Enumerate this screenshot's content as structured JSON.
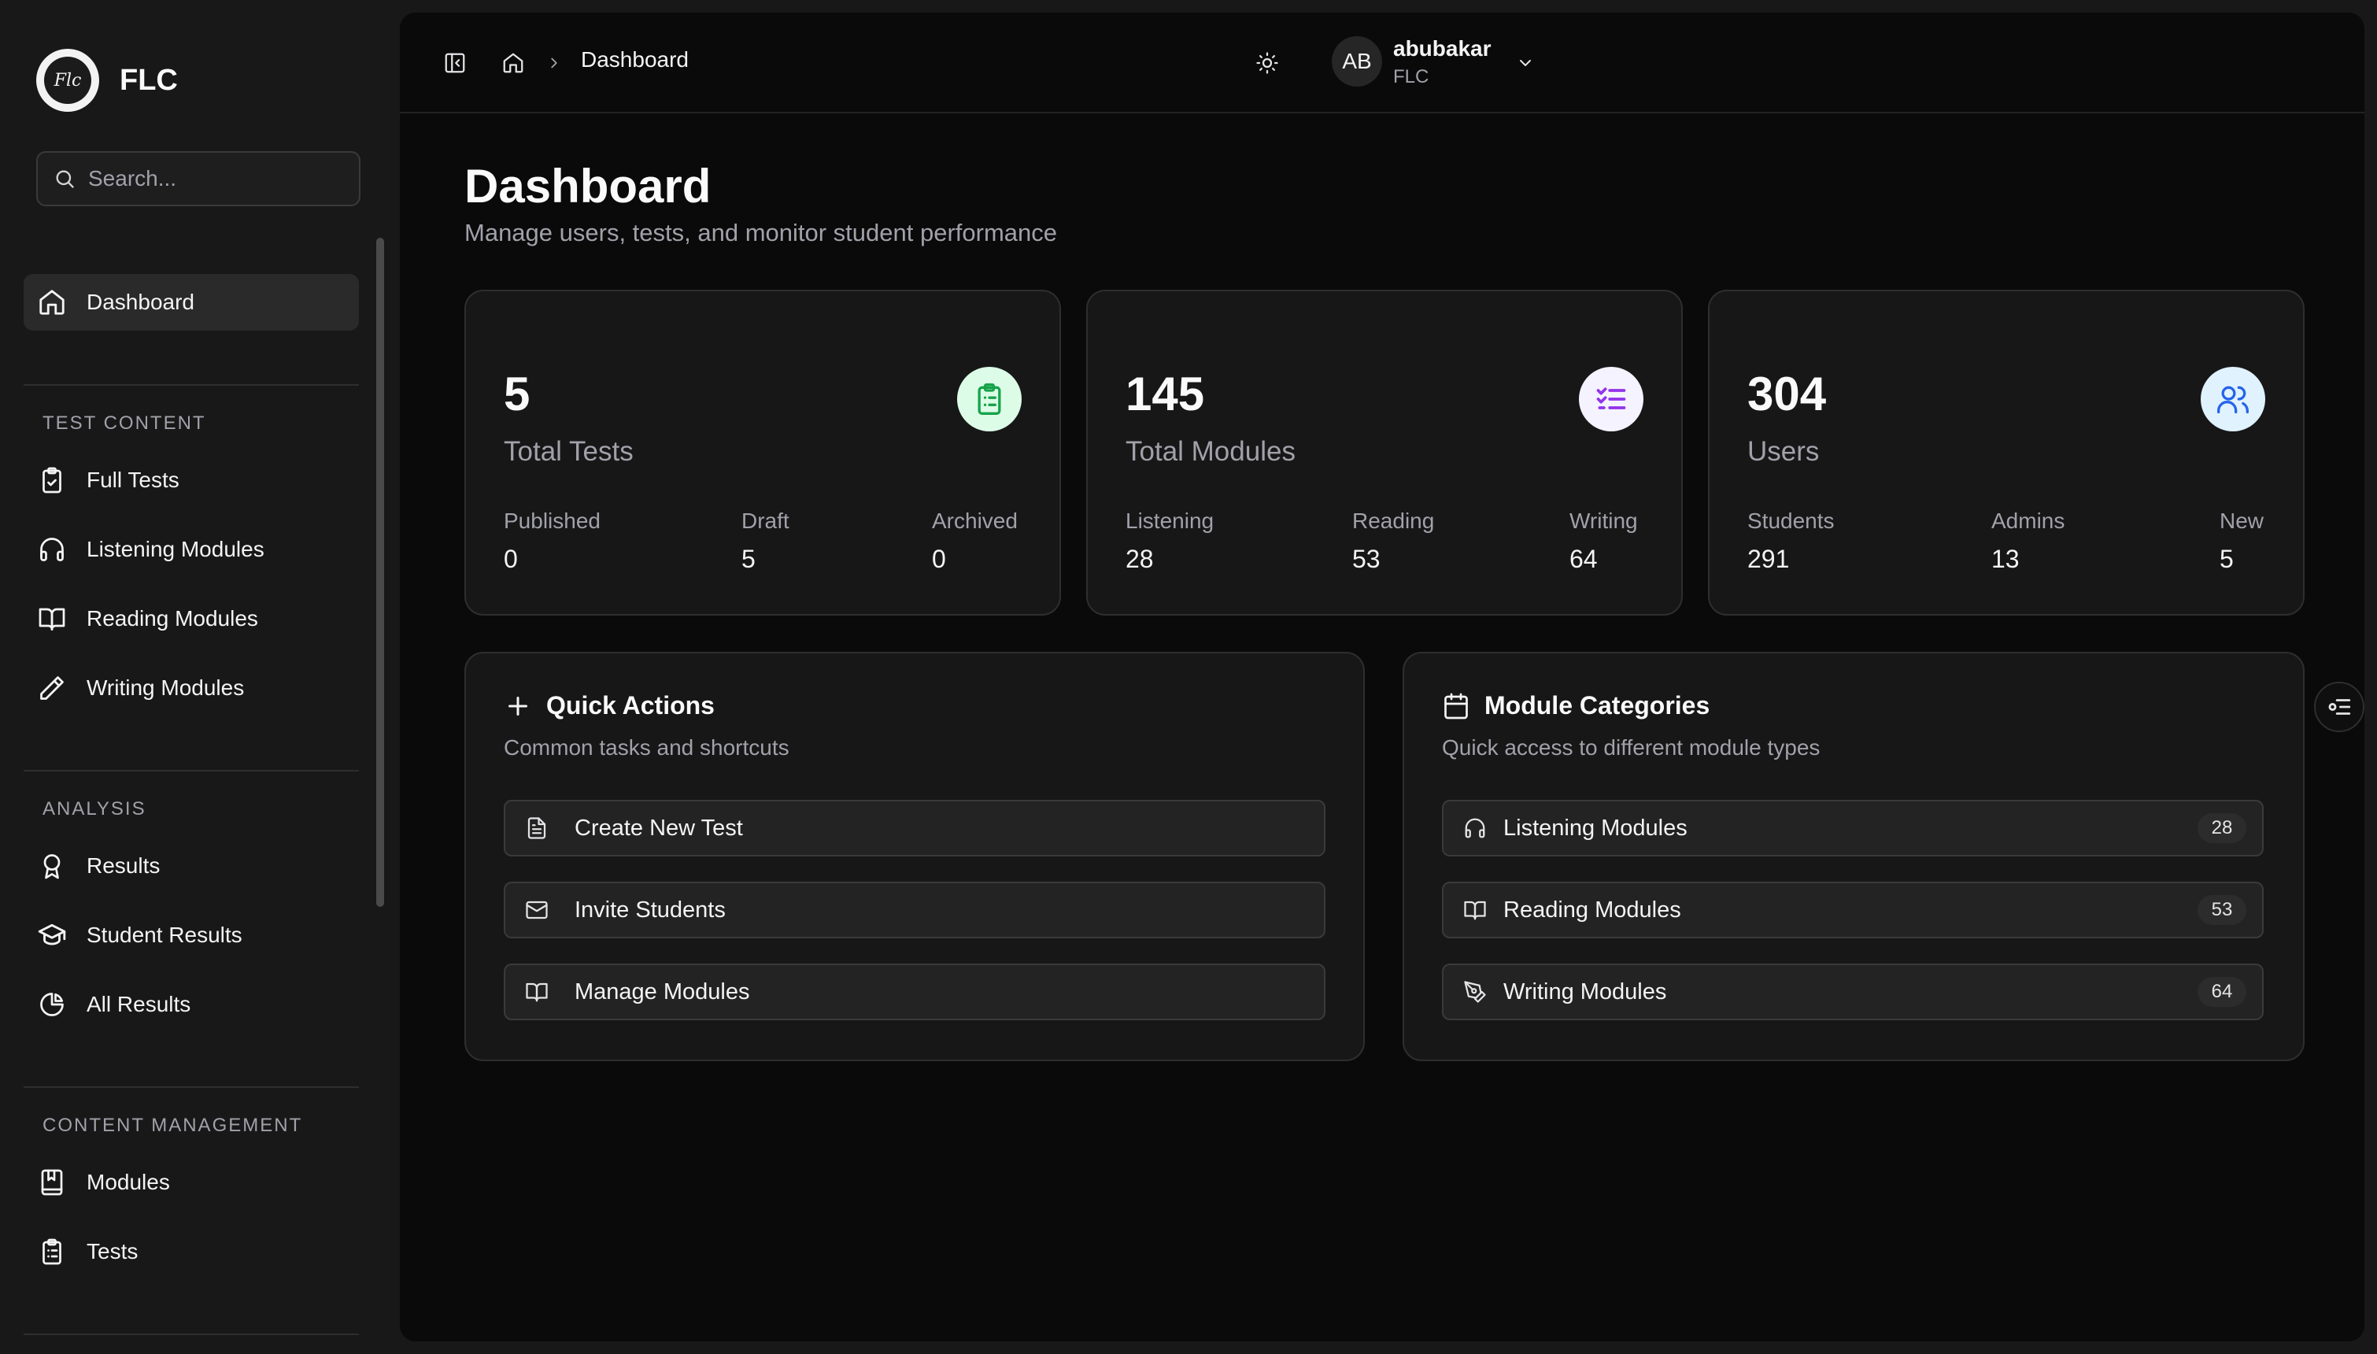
{
  "brand": {
    "name": "FLC",
    "logo_text": "Flc"
  },
  "search": {
    "placeholder": "Search..."
  },
  "sidebar": {
    "active": {
      "label": "Dashboard",
      "icon": "home-icon"
    },
    "sections": [
      {
        "title": "TEST CONTENT",
        "items": [
          {
            "label": "Full Tests",
            "icon": "clipboard-check-icon"
          },
          {
            "label": "Listening Modules",
            "icon": "headphones-icon"
          },
          {
            "label": "Reading Modules",
            "icon": "book-open-icon"
          },
          {
            "label": "Writing Modules",
            "icon": "pencil-icon"
          }
        ]
      },
      {
        "title": "ANALYSIS",
        "items": [
          {
            "label": "Results",
            "icon": "award-icon"
          },
          {
            "label": "Student Results",
            "icon": "graduation-cap-icon"
          },
          {
            "label": "All Results",
            "icon": "pie-chart-icon"
          }
        ]
      },
      {
        "title": "CONTENT MANAGEMENT",
        "items": [
          {
            "label": "Modules",
            "icon": "book-marked-icon"
          },
          {
            "label": "Tests",
            "icon": "clipboard-list-icon"
          }
        ]
      }
    ]
  },
  "topbar": {
    "breadcrumb": "Dashboard",
    "user": {
      "initials": "AB",
      "name": "abubakar",
      "org": "FLC"
    }
  },
  "page": {
    "title": "Dashboard",
    "subtitle": "Manage users, tests, and monitor student performance"
  },
  "stats": [
    {
      "value": "5",
      "label": "Total Tests",
      "icon": "clipboard-list-icon",
      "accent": "#16a34a",
      "badge_bg": "#dcfce7",
      "sub": [
        {
          "k": "Published",
          "v": "0"
        },
        {
          "k": "Draft",
          "v": "5"
        },
        {
          "k": "Archived",
          "v": "0"
        }
      ]
    },
    {
      "value": "145",
      "label": "Total Modules",
      "icon": "list-checks-icon",
      "accent": "#9333ea",
      "badge_bg": "#f5f3ff",
      "sub": [
        {
          "k": "Listening",
          "v": "28"
        },
        {
          "k": "Reading",
          "v": "53"
        },
        {
          "k": "Writing",
          "v": "64"
        }
      ]
    },
    {
      "value": "304",
      "label": "Users",
      "icon": "users-icon",
      "accent": "#2563eb",
      "badge_bg": "#e0f2fe",
      "sub": [
        {
          "k": "Students",
          "v": "291"
        },
        {
          "k": "Admins",
          "v": "13"
        },
        {
          "k": "New",
          "v": "5"
        }
      ]
    }
  ],
  "quick_actions": {
    "title": "Quick Actions",
    "description": "Common tasks and shortcuts",
    "items": [
      {
        "label": "Create New Test",
        "icon": "file-text-icon"
      },
      {
        "label": "Invite Students",
        "icon": "mail-icon"
      },
      {
        "label": "Manage Modules",
        "icon": "book-open-icon"
      }
    ]
  },
  "module_categories": {
    "title": "Module Categories",
    "description": "Quick access to different module types",
    "items": [
      {
        "label": "Listening Modules",
        "count": "28",
        "icon": "headphones-icon"
      },
      {
        "label": "Reading Modules",
        "count": "53",
        "icon": "book-open-icon"
      },
      {
        "label": "Writing Modules",
        "count": "64",
        "icon": "pen-tool-icon"
      }
    ]
  },
  "colors": {
    "page_bg": "#0a0a0a",
    "sidebar_bg": "#181818",
    "card_bg": "#171717",
    "border": "#2e2e2e",
    "muted_text": "#a1a1aa"
  }
}
